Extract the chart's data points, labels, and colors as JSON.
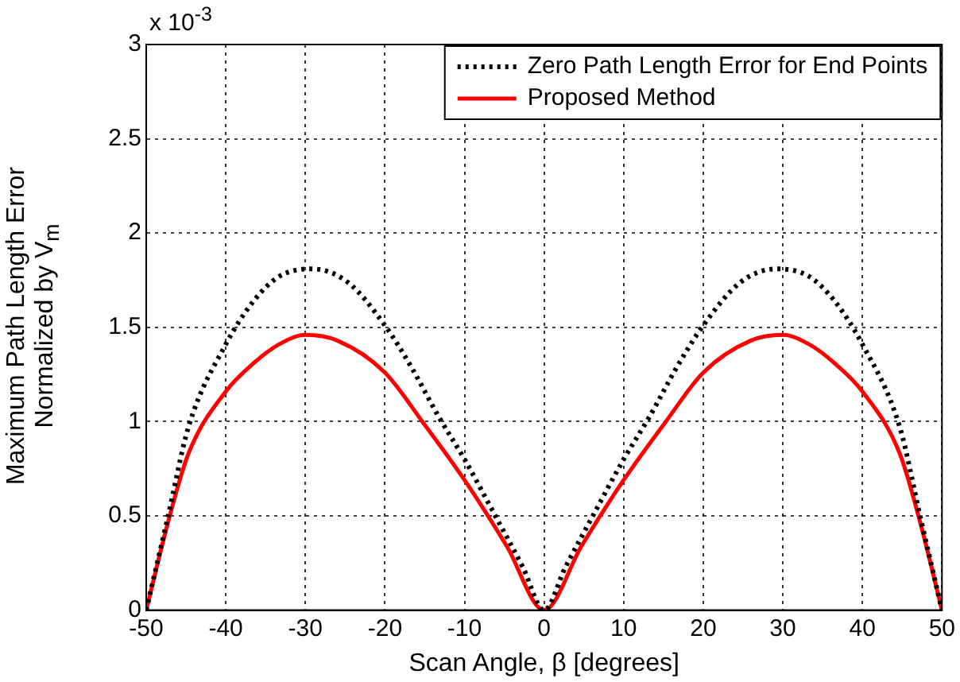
{
  "chart_data": {
    "type": "line",
    "xlabel": "Scan Angle, β [degrees]",
    "ylabel": "Maximum Path Length Error\nNormalized by V$_{m}$",
    "annotations": [
      "x 10$^{-3}$"
    ],
    "xlim": [
      -50,
      50
    ],
    "xticks": [
      -50,
      -40,
      -30,
      -20,
      -10,
      0,
      10,
      20,
      30,
      40,
      50
    ],
    "ylim": [
      0,
      3
    ],
    "yticks": [
      0,
      0.5,
      1,
      1.5,
      2,
      2.5,
      3
    ],
    "grid": true,
    "legend": "top right",
    "marker": "none",
    "series": [
      {
        "name": "Zero Path Length Error for End Points",
        "color": "#000000",
        "line_style": "dotted",
        "x": [
          -50,
          -47.3,
          -44.7,
          -40,
          -36.5,
          -33.3,
          -29.2,
          -24.7,
          -20,
          -16.7,
          -13.3,
          -10,
          -6,
          -2.7,
          0,
          2.7,
          6,
          10,
          13.3,
          16.7,
          20,
          24.7,
          29.2,
          33.3,
          36.5,
          40,
          44.7,
          47.3,
          50
        ],
        "values": [
          0,
          0.49,
          0.97,
          1.41,
          1.64,
          1.77,
          1.81,
          1.74,
          1.51,
          1.29,
          1.03,
          0.8,
          0.49,
          0.23,
          0,
          0.23,
          0.49,
          0.8,
          1.03,
          1.29,
          1.51,
          1.74,
          1.81,
          1.77,
          1.64,
          1.41,
          0.97,
          0.49,
          0
        ]
      },
      {
        "name": "Proposed Method",
        "color": "#ff0000",
        "line_style": "solid",
        "x": [
          -50,
          -47.3,
          -44.7,
          -40,
          -36.5,
          -33.3,
          -30,
          -26,
          -20,
          -15.3,
          -10,
          -4.7,
          0,
          4.7,
          10,
          15.3,
          20,
          26,
          30,
          33.3,
          36.5,
          40,
          44.7,
          47.3,
          50
        ],
        "values": [
          0,
          0.46,
          0.83,
          1.16,
          1.31,
          1.41,
          1.46,
          1.43,
          1.26,
          1.0,
          0.69,
          0.34,
          0,
          0.34,
          0.69,
          1.0,
          1.26,
          1.43,
          1.46,
          1.41,
          1.31,
          1.16,
          0.83,
          0.46,
          0
        ]
      }
    ]
  }
}
